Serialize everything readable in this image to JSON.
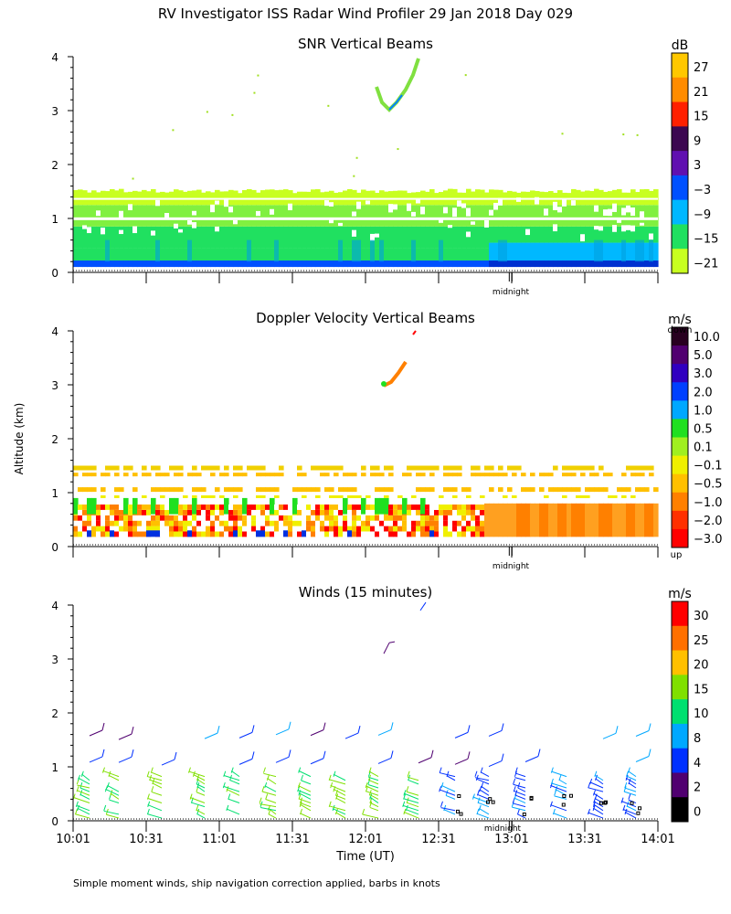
{
  "title": "RV Investigator ISS Radar Wind Profiler  29 Jan 2018 Day 029",
  "ylabel": "Altitude (km)",
  "xlabel": "Time (UT)",
  "footnote": "Simple moment winds, ship navigation correction applied, barbs in knots",
  "midnight_label": "midnight",
  "chart_data": [
    {
      "type": "heatmap",
      "title": "SNR Vertical Beams",
      "ylim": [
        0,
        4
      ],
      "yticks": [
        0,
        1,
        2,
        3,
        4
      ],
      "x_range_ut": [
        "10:01",
        "14:01"
      ],
      "midnight_hour": 13.0,
      "colorbar": {
        "unit": "dB",
        "labels": [
          "27",
          "21",
          "15",
          "9",
          "3",
          "−3",
          "−9",
          "−15",
          "−21"
        ],
        "colors": [
          "#ffc800",
          "#ff8c00",
          "#ff2000",
          "#3c0850",
          "#6010b0",
          "#0050ff",
          "#00b8ff",
          "#20e060",
          "#c8ff20"
        ]
      }
    },
    {
      "type": "heatmap",
      "title": "Doppler Velocity Vertical Beams",
      "ylim": [
        0,
        4
      ],
      "yticks": [
        0,
        1,
        2,
        3,
        4
      ],
      "x_range_ut": [
        "10:01",
        "14:01"
      ],
      "midnight_hour": 13.0,
      "colorbar": {
        "unit": "m/s",
        "top_label": "down",
        "bottom_label": "up",
        "labels": [
          "10.0",
          "5.0",
          "3.0",
          "2.0",
          "1.0",
          "0.5",
          "0.1",
          "−0.1",
          "−0.5",
          "−1.0",
          "−2.0",
          "−3.0"
        ],
        "colors": [
          "#280020",
          "#500070",
          "#3000c0",
          "#0040ff",
          "#00a8ff",
          "#20e020",
          "#a0f020",
          "#f0f000",
          "#ffc000",
          "#ff8000",
          "#ff3000",
          "#ff0000"
        ]
      }
    },
    {
      "type": "scatter",
      "title": "Winds (15 minutes)",
      "ylim": [
        0,
        4
      ],
      "yticks": [
        0,
        1,
        2,
        3,
        4
      ],
      "xticks": [
        "10:01",
        "10:31",
        "11:01",
        "11:31",
        "12:01",
        "12:31",
        "13:01",
        "13:31",
        "14:01"
      ],
      "midnight_hour": 13.0,
      "colorbar": {
        "unit": "m/s",
        "labels": [
          "30",
          "25",
          "20",
          "15",
          "10",
          "8",
          "4",
          "2",
          "0"
        ],
        "colors": [
          "#ff0000",
          "#ff7000",
          "#ffc000",
          "#80e000",
          "#00e070",
          "#00a8ff",
          "#0030ff",
          "#500070",
          "#000000"
        ]
      }
    }
  ]
}
